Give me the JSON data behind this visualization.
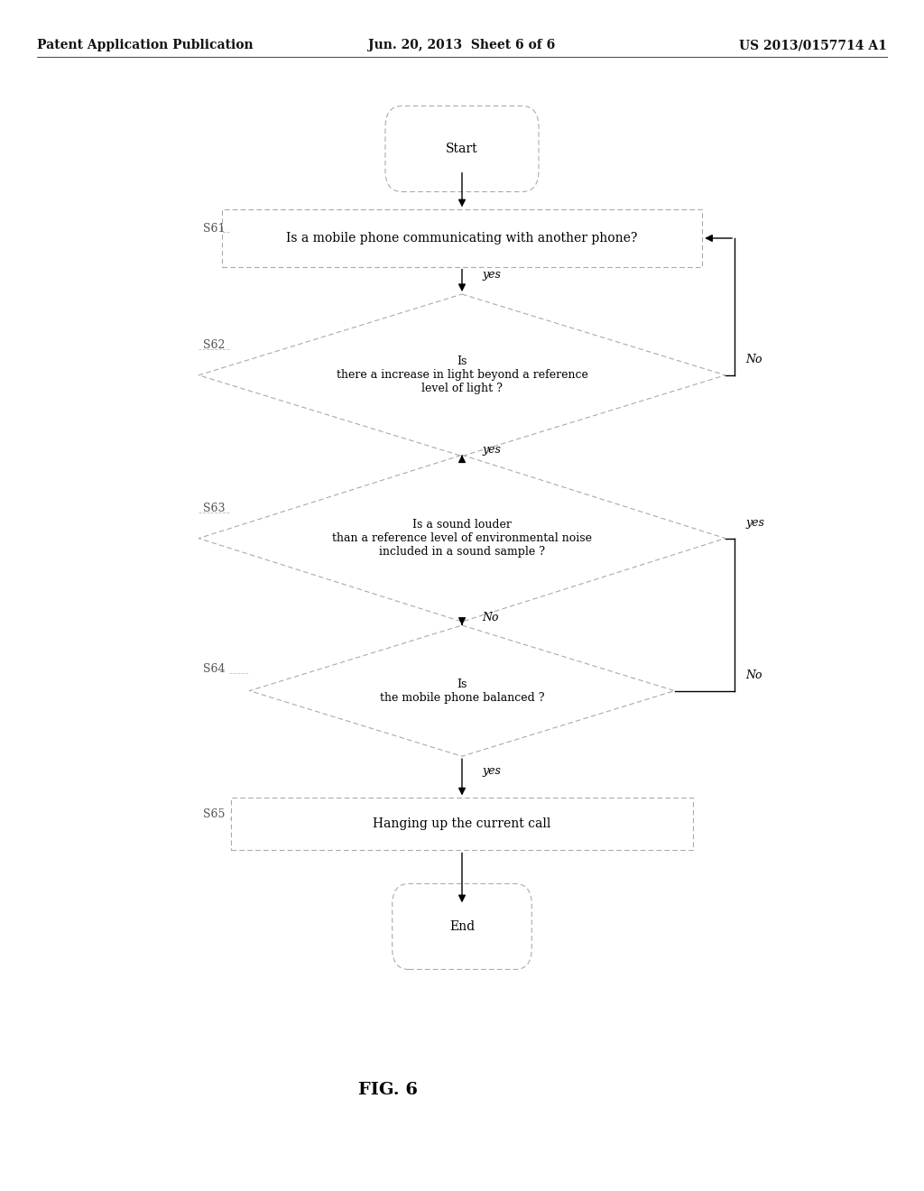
{
  "bg_color": "#ffffff",
  "header_left": "Patent Application Publication",
  "header_center": "Jun. 20, 2013  Sheet 6 of 6",
  "header_right": "US 2013/0157714 A1",
  "fig_label": "FIG. 6",
  "step_labels": [
    "S61",
    "S62",
    "S63",
    "S64",
    "S65"
  ],
  "line_color": "#000000",
  "box_line_color": "#aaaaaa",
  "step_label_color": "#555555",
  "text_color": "#000000",
  "font_size_header": 10,
  "font_size_node": 10,
  "font_size_step": 10,
  "font_size_fig": 14
}
